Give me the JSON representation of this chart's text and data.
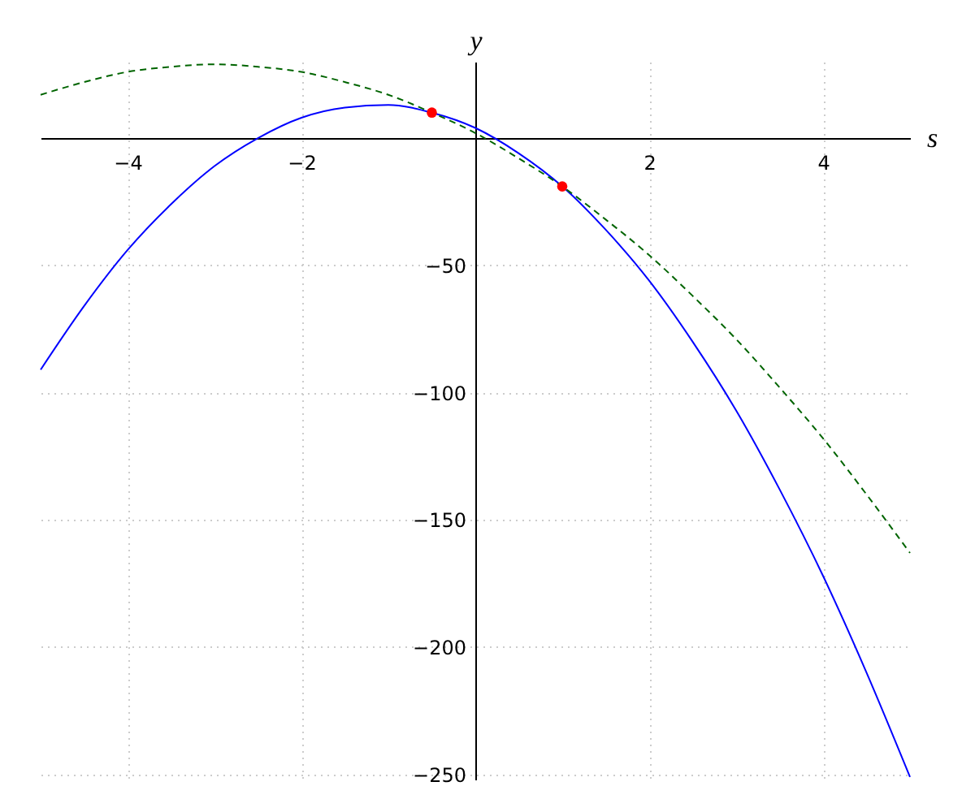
{
  "chart_data": {
    "type": "line",
    "xlabel": "s",
    "ylabel": "y",
    "xlim": [
      -5,
      5
    ],
    "ylim": [
      -252,
      30
    ],
    "xticks": [
      -4,
      -2,
      2,
      4
    ],
    "yticks": [
      -250,
      -200,
      -150,
      -100,
      -50
    ],
    "grid": true,
    "series": [
      {
        "color": "#0000ff",
        "line_style": "solid",
        "x": [
          -5,
          -4.5,
          -4,
          -3.5,
          -3,
          -2.5,
          -2,
          -1.5,
          -1,
          -0.5,
          0,
          0.5,
          1,
          1.5,
          2,
          2.5,
          3,
          3.5,
          4,
          4.5,
          5
        ],
        "values": [
          -91,
          -66,
          -44,
          -26,
          -11,
          0,
          8,
          12,
          13,
          10,
          4,
          -6,
          -19,
          -36,
          -56,
          -80,
          -107,
          -138,
          -172,
          -210,
          -251
        ]
      },
      {
        "color": "#006400",
        "line_style": "dashed",
        "x": [
          -5,
          -4.5,
          -4,
          -3.5,
          -3,
          -2.5,
          -2,
          -1.5,
          -1,
          -0.5,
          0,
          0.5,
          1,
          1.5,
          2,
          2.5,
          3,
          3.5,
          4,
          4.5,
          5
        ],
        "values": [
          17,
          22,
          26,
          28,
          29,
          28,
          26,
          22,
          17,
          10,
          2,
          -8,
          -19,
          -32,
          -46,
          -62,
          -79,
          -98,
          -118,
          -140,
          -163
        ]
      },
      {
        "type": "scatter",
        "color": "#ff0000",
        "marker": "circle",
        "x": [
          -0.5,
          1
        ],
        "values": [
          10,
          -19
        ]
      }
    ]
  }
}
